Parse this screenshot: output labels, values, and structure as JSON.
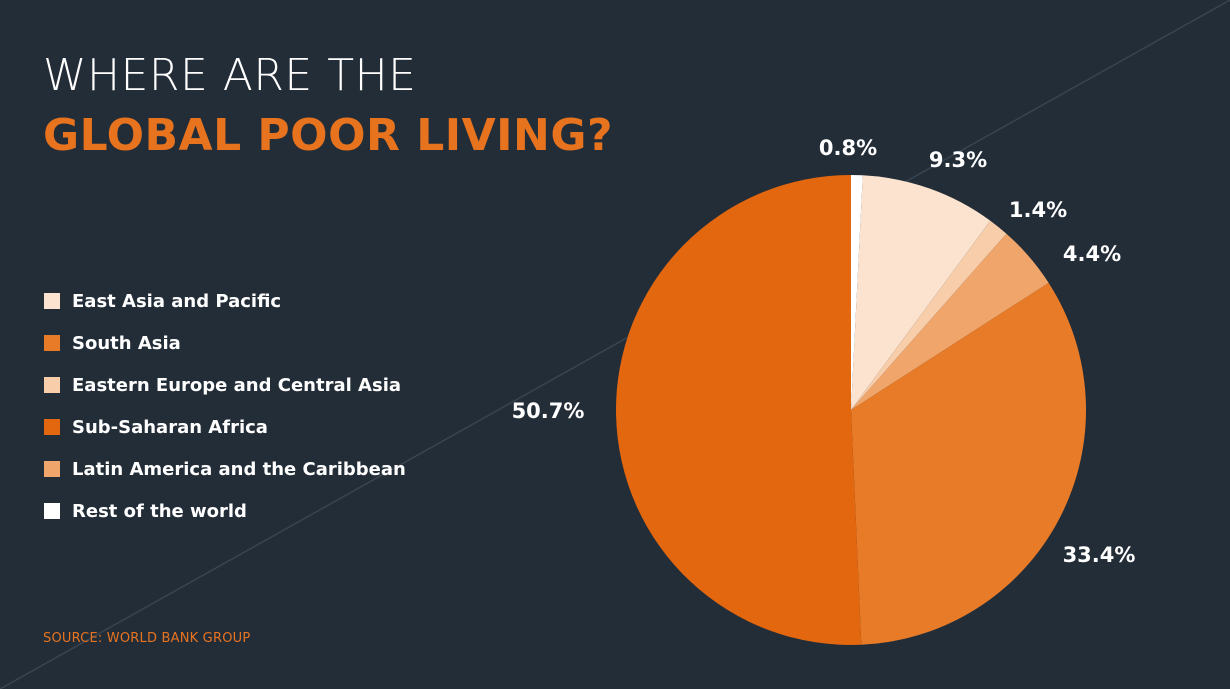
{
  "title": {
    "line1": "WHERE ARE THE",
    "line2": "GLOBAL POOR LIVING?"
  },
  "source": "SOURCE: WORLD BANK GROUP",
  "colors": {
    "background": "#232d38",
    "accent": "#e8731e"
  },
  "chart_data": {
    "type": "pie",
    "start": "12 o'clock",
    "direction": "clockwise",
    "legend_position": "left",
    "slices": [
      {
        "name": "Rest of the world",
        "value": 0.8,
        "label": "0.8%",
        "color": "#ffffff"
      },
      {
        "name": "East Asia and Pacific",
        "value": 9.3,
        "label": "9.3%",
        "color": "#fce3cf"
      },
      {
        "name": "Eastern Europe and Central Asia",
        "value": 1.4,
        "label": "1.4%",
        "color": "#f8cdaa"
      },
      {
        "name": "Latin America and the Caribbean",
        "value": 4.4,
        "label": "4.4%",
        "color": "#f0a66b"
      },
      {
        "name": "South Asia",
        "value": 33.4,
        "label": "33.4%",
        "color": "#e87b28"
      },
      {
        "name": "Sub-Saharan Africa",
        "value": 50.7,
        "label": "50.7%",
        "color": "#e3670f"
      }
    ],
    "legend": [
      {
        "name": "East Asia and Pacific",
        "color": "#fce3cf"
      },
      {
        "name": "South Asia",
        "color": "#e87b28"
      },
      {
        "name": "Eastern Europe and Central Asia",
        "color": "#f8cdaa"
      },
      {
        "name": "Sub-Saharan Africa",
        "color": "#e3670f"
      },
      {
        "name": "Latin America and the Caribbean",
        "color": "#f0a66b"
      },
      {
        "name": "Rest of the world",
        "color": "#ffffff"
      }
    ]
  }
}
